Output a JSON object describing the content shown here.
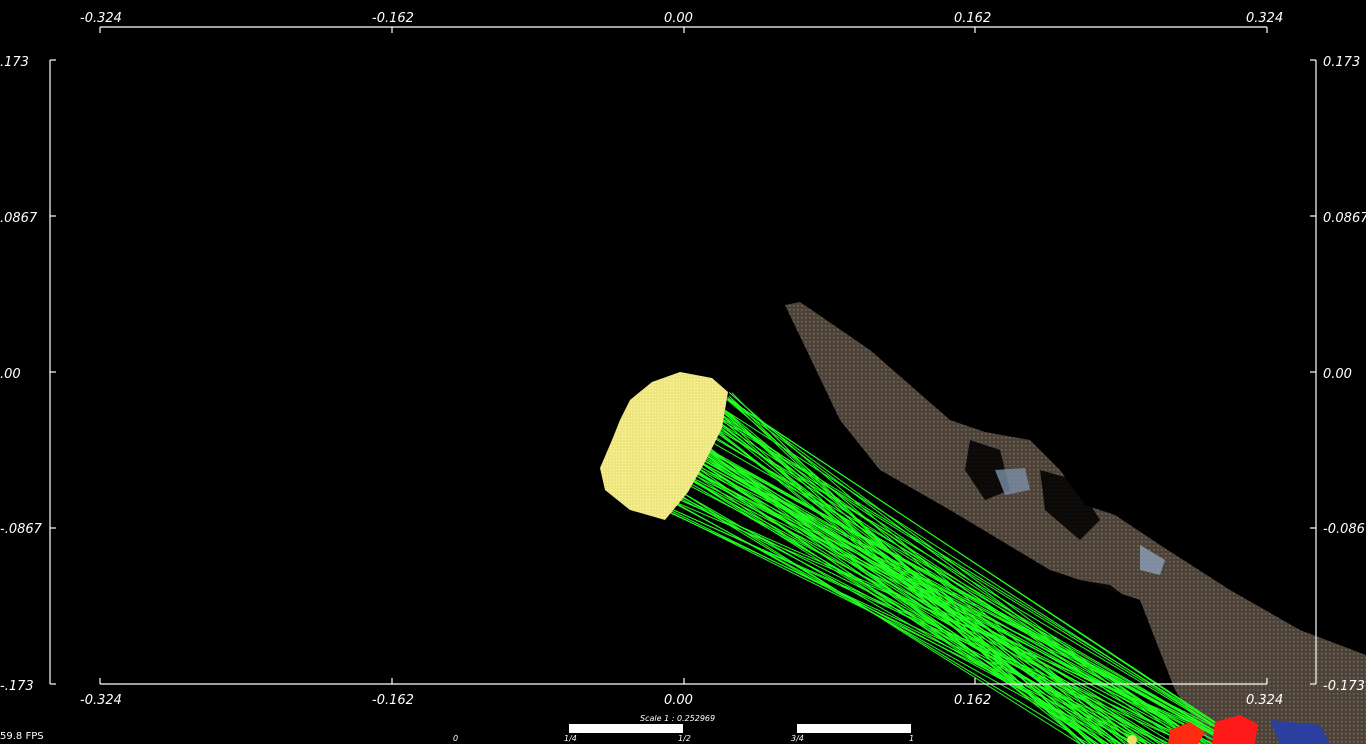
{
  "axes": {
    "top_ticks": [
      "-0.324",
      "-0.162",
      "0.00",
      "0.162",
      "0.324"
    ],
    "bottom_ticks": [
      "-0.324",
      "-0.162",
      "0.00",
      "0.162",
      "0.324"
    ],
    "left_ticks": [
      ".173",
      ".0867",
      ".00",
      "-.0867",
      "-.173"
    ],
    "right_ticks": [
      "0.173",
      "0.0867",
      "0.00",
      "-0.086",
      "-0.173"
    ]
  },
  "scale_bar": {
    "title": "Scale 1 : 0.252969",
    "ticks": [
      "0",
      "1/4",
      "1/2",
      "3/4",
      "1"
    ]
  },
  "status": {
    "fps": "59.8 FPS"
  },
  "colors": {
    "background": "#000000",
    "source_cloud": "#f2ee8a",
    "correspondence_lines": "#22ff22",
    "target_cloud": "#5a4f44",
    "highlight": "#ff1a1a"
  }
}
